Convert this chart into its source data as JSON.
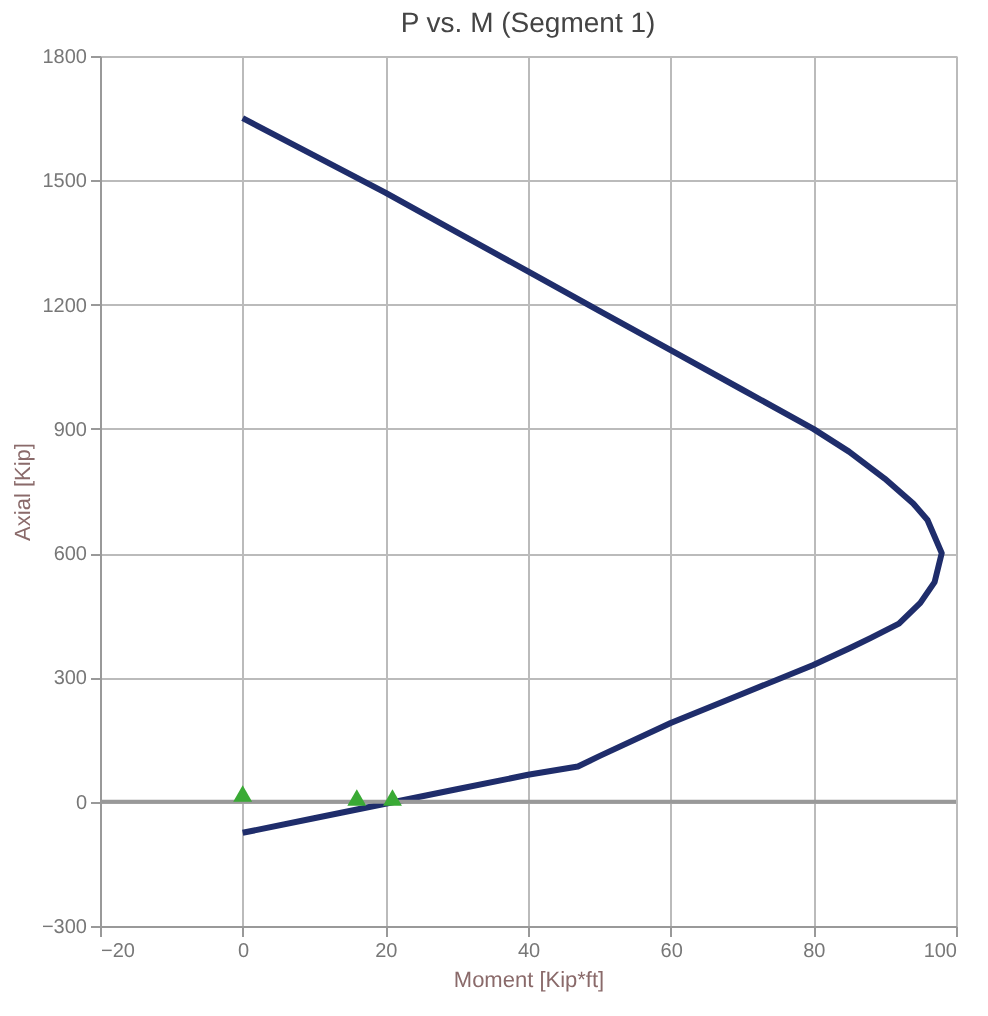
{
  "chart_data": {
    "type": "line",
    "title": "P vs. M (Segment 1)",
    "xlabel": "Moment [Kip*ft]",
    "ylabel": "Axial [Kip]",
    "xlim": [
      -20,
      100
    ],
    "xticks": [
      -20,
      0,
      20,
      40,
      60,
      80,
      100
    ],
    "ylim": [
      -300,
      1800
    ],
    "yticks": [
      -300,
      0,
      300,
      600,
      900,
      1200,
      1500,
      1800
    ],
    "grid": true,
    "ref_lines": [
      {
        "axis": "y",
        "value": 0,
        "color": "#999999"
      }
    ],
    "series": [
      {
        "color": "#1f2d6b",
        "marker": "none",
        "x": [
          0,
          10,
          20,
          30,
          40,
          50,
          60,
          70,
          80,
          85,
          90,
          94,
          96,
          98,
          97,
          95,
          92,
          88,
          85,
          80,
          70,
          60,
          50,
          47,
          40,
          30,
          20,
          10,
          0
        ],
        "values": [
          1650,
          1560,
          1470,
          1375,
          1280,
          1185,
          1090,
          995,
          900,
          845,
          780,
          720,
          680,
          600,
          530,
          480,
          430,
          395,
          370,
          330,
          260,
          190,
          110,
          85,
          65,
          30,
          -5,
          -40,
          -75
        ]
      },
      {
        "type": "scatter",
        "color": "#3aaa35",
        "marker": "triangle",
        "x": [
          0,
          16,
          21
        ],
        "values": [
          20,
          10,
          10
        ]
      }
    ]
  }
}
